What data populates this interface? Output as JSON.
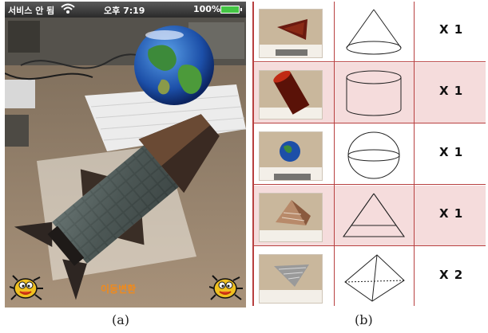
{
  "panel_a": {
    "status_bar": {
      "carrier": "서비스 안 됨",
      "time": "오후 7:19",
      "battery_percent": "100%",
      "battery_level": 1.0,
      "wifi_icon": "wifi-icon"
    },
    "bottom_label": "이동변환",
    "left_button_icon": "bug-icon",
    "right_button_icon": "bug-icon",
    "colors": {
      "label_orange": "#f28a1a",
      "desk": "#8a7a66",
      "battery_green": "#44c544"
    }
  },
  "panel_b": {
    "rows": [
      {
        "photo_icon": "cone-textured-photo",
        "shape_icon": "cone-shape-icon",
        "count": "X 1",
        "shaded": false
      },
      {
        "photo_icon": "cylinder-textured-photo",
        "shape_icon": "cylinder-shape-icon",
        "count": "X 1",
        "shaded": true
      },
      {
        "photo_icon": "sphere-earth-photo",
        "shape_icon": "sphere-shape-icon",
        "count": "X 1",
        "shaded": false
      },
      {
        "photo_icon": "pyramid-textured-photo",
        "shape_icon": "pyramid-shape-icon",
        "count": "X 1",
        "shaded": true
      },
      {
        "photo_icon": "tetrahedron-textured-photo",
        "shape_icon": "tetrahedron-shape-icon",
        "count": "X 2",
        "shaded": false
      }
    ],
    "colors": {
      "grid_red": "#b84040",
      "row_shade": "#f5dcdc"
    }
  },
  "captions": {
    "a": "(a)",
    "b": "(b)"
  }
}
